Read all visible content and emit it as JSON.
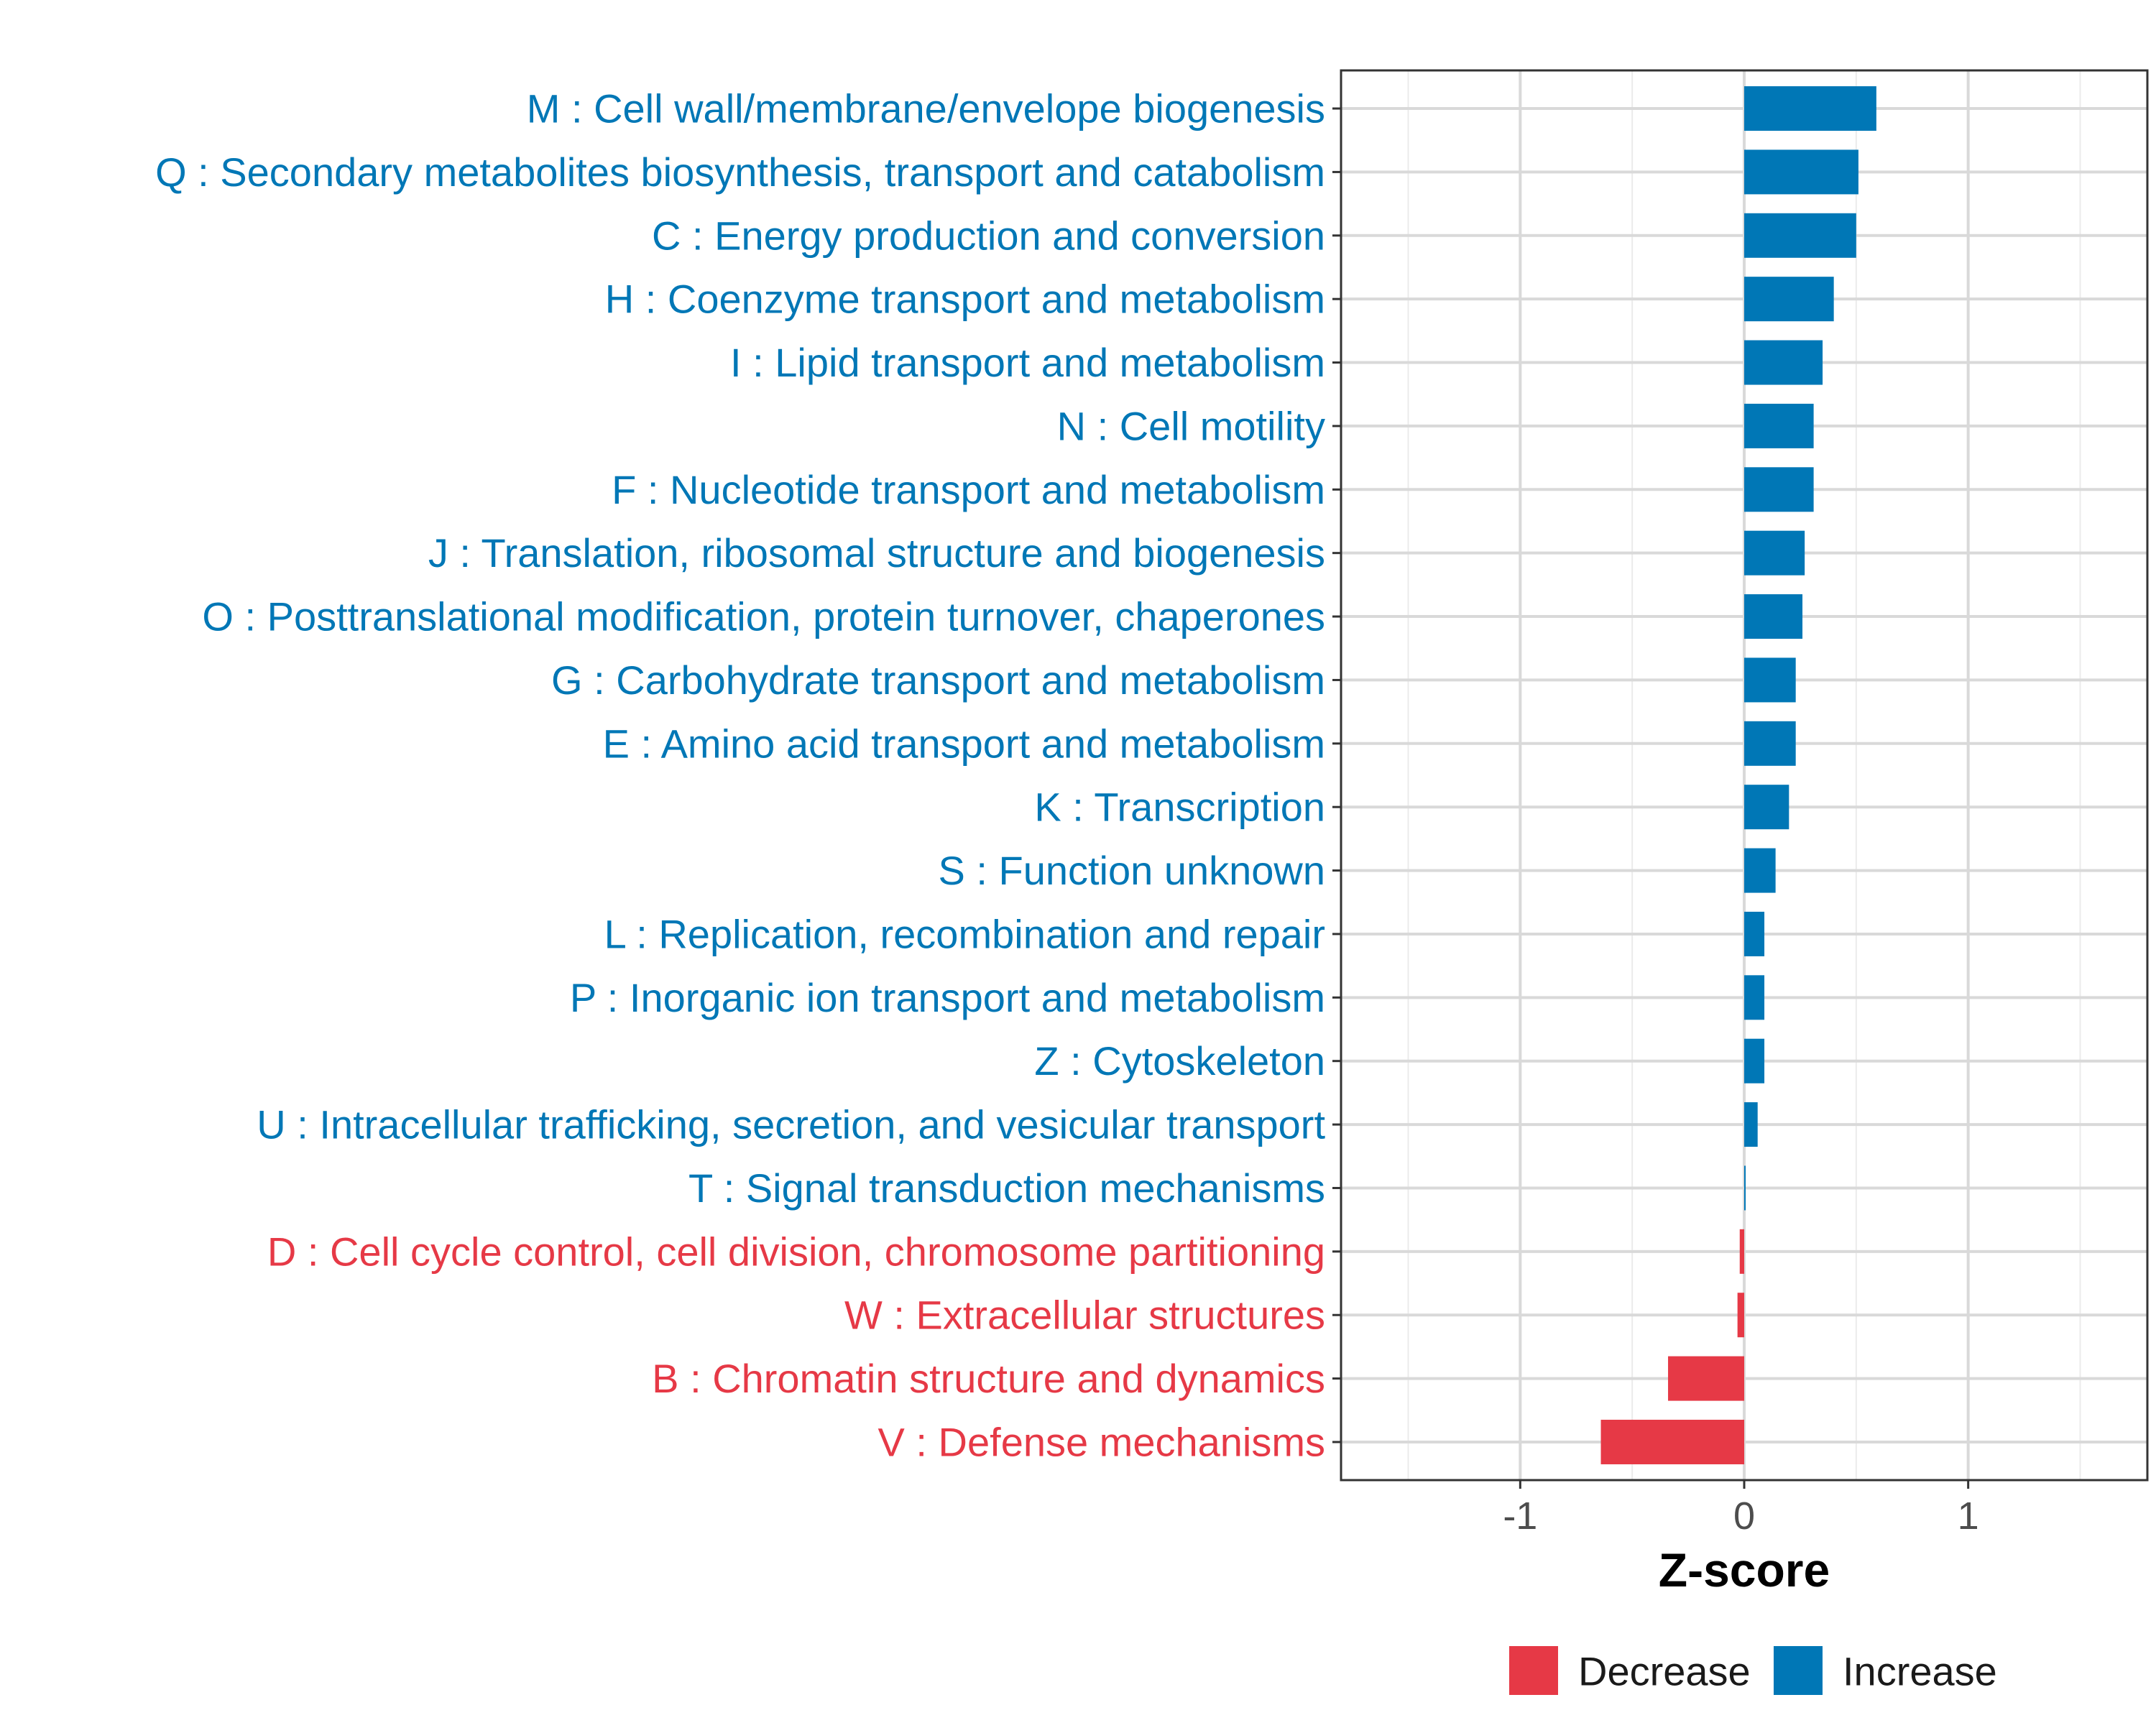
{
  "chart_data": {
    "type": "bar",
    "orientation": "horizontal",
    "xlabel": "Z-score",
    "xlim": [
      -1.8,
      1.8
    ],
    "xticks": [
      -1,
      0,
      1
    ],
    "xtick_labels": [
      "-1",
      "0",
      "1"
    ],
    "grid": true,
    "colors": {
      "Decrease": "#e63946",
      "Increase": "#0077b6"
    },
    "legend": {
      "position": "bottom",
      "entries": [
        {
          "label": "Decrease",
          "color": "#e63946"
        },
        {
          "label": "Increase",
          "color": "#0077b6"
        }
      ]
    },
    "bars": [
      {
        "label": "M : Cell wall/membrane/envelope biogenesis",
        "value": 0.59,
        "group": "Increase"
      },
      {
        "label": "Q : Secondary metabolites biosynthesis, transport and catabolism",
        "value": 0.51,
        "group": "Increase"
      },
      {
        "label": "C : Energy production and conversion",
        "value": 0.5,
        "group": "Increase"
      },
      {
        "label": "H : Coenzyme transport and metabolism",
        "value": 0.4,
        "group": "Increase"
      },
      {
        "label": "I : Lipid transport and metabolism",
        "value": 0.35,
        "group": "Increase"
      },
      {
        "label": "N : Cell motility",
        "value": 0.31,
        "group": "Increase"
      },
      {
        "label": "F : Nucleotide transport and metabolism",
        "value": 0.31,
        "group": "Increase"
      },
      {
        "label": "J : Translation, ribosomal structure and biogenesis",
        "value": 0.27,
        "group": "Increase"
      },
      {
        "label": "O : Posttranslational modification, protein turnover, chaperones",
        "value": 0.26,
        "group": "Increase"
      },
      {
        "label": "G : Carbohydrate transport and metabolism",
        "value": 0.23,
        "group": "Increase"
      },
      {
        "label": "E : Amino acid transport and metabolism",
        "value": 0.23,
        "group": "Increase"
      },
      {
        "label": "K : Transcription",
        "value": 0.2,
        "group": "Increase"
      },
      {
        "label": "S : Function unknown",
        "value": 0.14,
        "group": "Increase"
      },
      {
        "label": "L : Replication, recombination and repair",
        "value": 0.09,
        "group": "Increase"
      },
      {
        "label": "P : Inorganic ion transport and metabolism",
        "value": 0.09,
        "group": "Increase"
      },
      {
        "label": "Z : Cytoskeleton",
        "value": 0.09,
        "group": "Increase"
      },
      {
        "label": "U : Intracellular trafficking, secretion, and vesicular transport",
        "value": 0.06,
        "group": "Increase"
      },
      {
        "label": "T : Signal transduction mechanisms",
        "value": 0.005,
        "group": "Increase"
      },
      {
        "label": "D : Cell cycle control, cell division, chromosome partitioning",
        "value": -0.02,
        "group": "Decrease"
      },
      {
        "label": "W : Extracellular structures",
        "value": -0.03,
        "group": "Decrease"
      },
      {
        "label": "B : Chromatin structure and dynamics",
        "value": -0.34,
        "group": "Decrease"
      },
      {
        "label": "V : Defense mechanisms",
        "value": -0.64,
        "group": "Decrease"
      }
    ]
  }
}
